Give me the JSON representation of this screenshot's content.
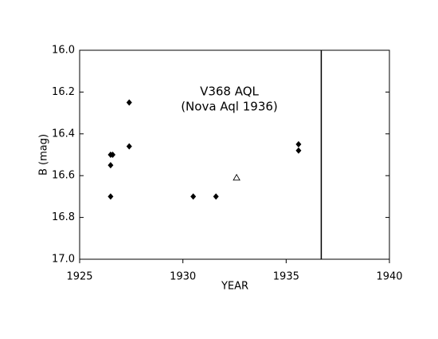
{
  "chart_data": {
    "type": "scatter",
    "title": [
      "V368 AQL",
      "(Nova Aql 1936)"
    ],
    "xlabel": "YEAR",
    "ylabel": "B (mag)",
    "xlim": [
      1925,
      1940
    ],
    "xticks": [
      1925,
      1930,
      1935,
      1940
    ],
    "ylim": [
      16.0,
      17.0
    ],
    "y_inverted": true,
    "yticks": [
      {
        "value": 16.0,
        "label": "16.0"
      },
      {
        "value": 16.2,
        "label": "16.2"
      },
      {
        "value": 16.4,
        "label": "16.4"
      },
      {
        "value": 16.6,
        "label": "16.6"
      },
      {
        "value": 16.8,
        "label": "16.8"
      },
      {
        "value": 17.0,
        "label": "17.0"
      }
    ],
    "vlines": [
      1936.7
    ],
    "series": [
      {
        "marker": "diamond",
        "color": "#000000",
        "x": [
          1926.5,
          1926.6,
          1926.5,
          1926.5,
          1927.4,
          1927.4,
          1930.5,
          1931.6,
          1935.6,
          1935.6
        ],
        "values": [
          16.5,
          16.5,
          16.55,
          16.7,
          16.25,
          16.46,
          16.7,
          16.7,
          16.45,
          16.48
        ]
      },
      {
        "marker": "open-triangle",
        "color": "#000000",
        "x": [
          1932.6
        ],
        "values": [
          16.61
        ]
      }
    ]
  }
}
